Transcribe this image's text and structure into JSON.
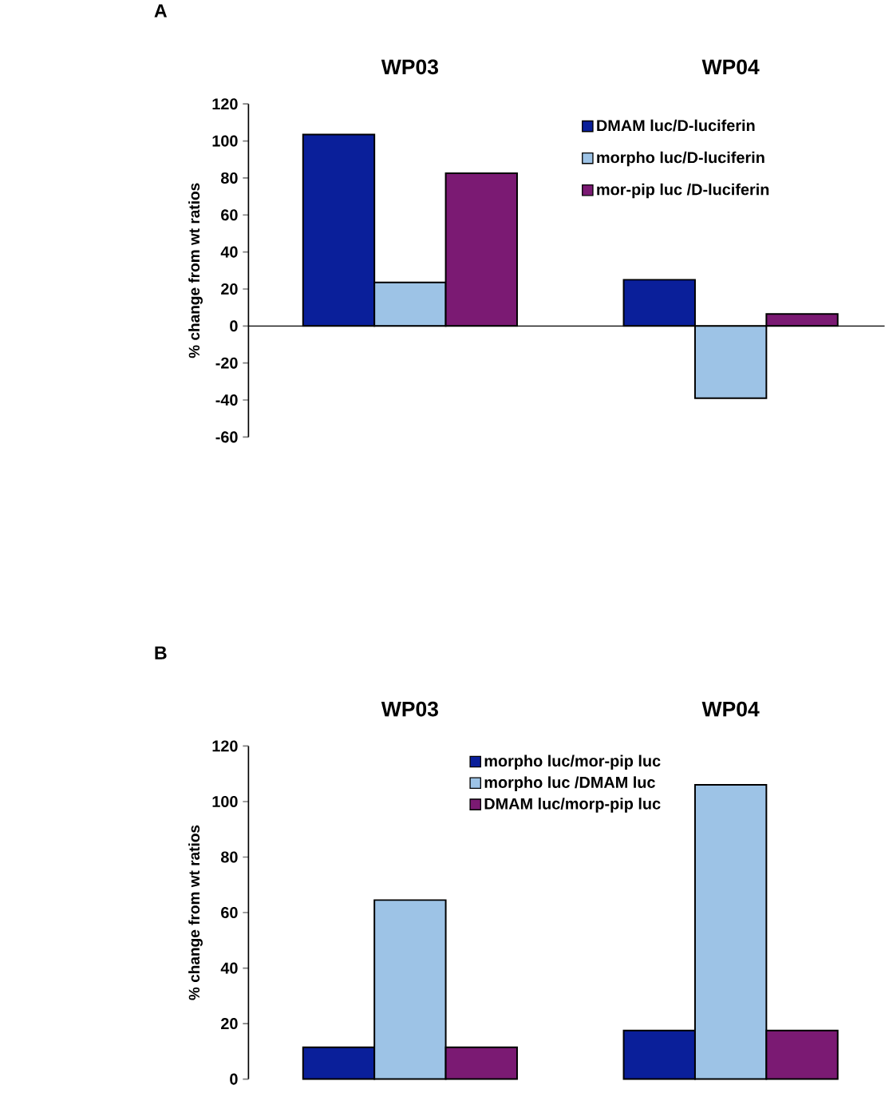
{
  "chart_data": [
    {
      "type": "bar",
      "title": "A",
      "ylabel": "% change from wt ratios",
      "categories": [
        "WP03",
        "WP04"
      ],
      "series": [
        {
          "name": "DMAM luc/D-luciferin",
          "color": "#0a1f9a",
          "values": [
            103.5,
            25
          ]
        },
        {
          "name": "morpho luc/D-luciferin",
          "color": "#9dc3e6",
          "values": [
            23.5,
            -39
          ]
        },
        {
          "name": "mor-pip luc /D-luciferin",
          "color": "#7b1a73",
          "values": [
            82.5,
            6.5
          ]
        }
      ],
      "ylim": [
        -60,
        120
      ],
      "yticks": [
        -60,
        -40,
        -20,
        0,
        20,
        40,
        60,
        80,
        100,
        120
      ],
      "legend": "top right"
    },
    {
      "type": "bar",
      "title": "B",
      "ylabel": "% change from wt ratios",
      "categories": [
        "WP03",
        "WP04"
      ],
      "series": [
        {
          "name": "morpho luc/mor-pip luc",
          "color": "#0a1f9a",
          "values": [
            11.5,
            17.5
          ]
        },
        {
          "name": "morpho luc /DMAM luc",
          "color": "#9dc3e6",
          "values": [
            64.5,
            106
          ]
        },
        {
          "name": "DMAM luc/morp-pip luc",
          "color": "#7b1a73",
          "values": [
            11.5,
            17.5
          ]
        }
      ],
      "ylim": [
        0,
        120
      ],
      "yticks": [
        0,
        20,
        40,
        60,
        80,
        100,
        120
      ],
      "legend": "top"
    }
  ]
}
